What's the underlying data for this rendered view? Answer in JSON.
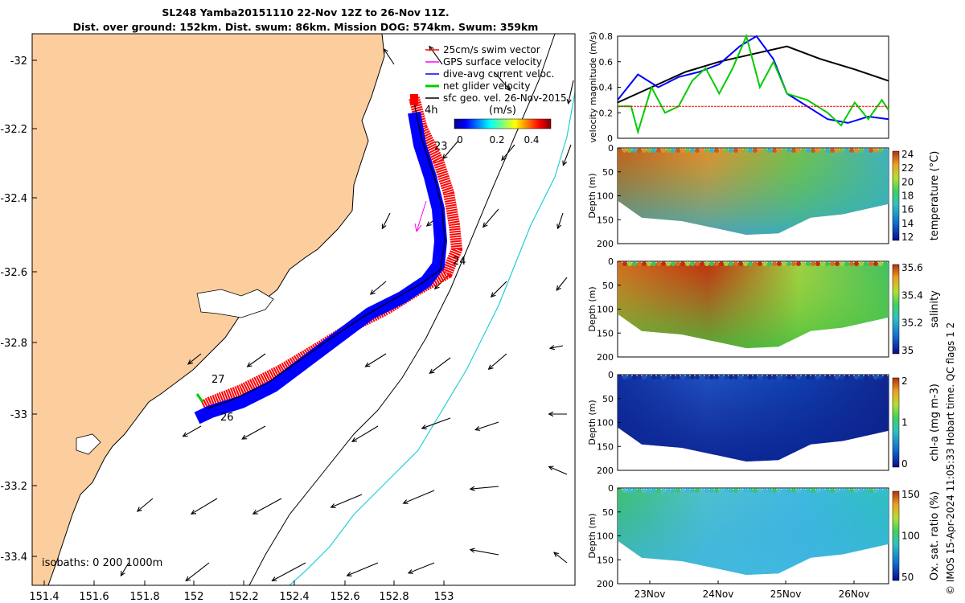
{
  "titles": {
    "line1": "SL248 Yamba20151110 22-Nov 12Z to 26-Nov 11Z.",
    "line2": "Dist. over ground: 152km. Dist. swum: 86km. Mission DOG: 574km. Swum: 359km"
  },
  "map": {
    "lon_ticks": [
      "151.4",
      "151.6",
      "151.8",
      "152",
      "152.2",
      "152.4",
      "152.6",
      "152.8",
      "153"
    ],
    "lat_ticks": [
      "-32",
      "-32.2",
      "-32.4",
      "-32.6",
      "-32.8",
      "-33",
      "-33.2",
      "-33.4"
    ],
    "legend": [
      "25cm/s swim vector",
      "GPS surface velocity",
      "dive-avg current veloc.",
      "net glider velocity",
      "sfc geo. vel. 26-Nov-2015"
    ],
    "colorbar_label": "(m/s)",
    "colorbar_ticks": [
      "0",
      "0.2",
      "0.4"
    ],
    "isobaths_label": "isobaths: 0   200  1000m",
    "day_labels": [
      "4h",
      "23",
      "24",
      "27",
      "26"
    ],
    "colors": {
      "land": "#fcce9e",
      "swim": "#ff0000",
      "current": "#0000ff",
      "glider": "#00cc00",
      "gps": "#ff00ff",
      "iso200": "#000000",
      "iso1000": "#20d0d0"
    }
  },
  "chart_data": [
    {
      "type": "line",
      "ylabel": "velocity magnitude (m/s)",
      "ylim": [
        0,
        0.8
      ],
      "yticks": [
        "0",
        "0.2",
        "0.4",
        "0.6",
        "0.8"
      ],
      "x_range_days": [
        22.5,
        26.5
      ],
      "series": [
        {
          "color": "#000000",
          "x": [
            22.5,
            23.0,
            23.5,
            24.0,
            24.5,
            25.0,
            25.5,
            26.0,
            26.5
          ],
          "values": [
            0.28,
            0.4,
            0.52,
            0.6,
            0.66,
            0.72,
            0.62,
            0.54,
            0.45
          ]
        },
        {
          "color": "#0000ff",
          "x": [
            22.5,
            22.8,
            23.1,
            23.4,
            23.7,
            24.0,
            24.3,
            24.55,
            24.8,
            25.0,
            25.3,
            25.6,
            25.9,
            26.2,
            26.5
          ],
          "values": [
            0.3,
            0.5,
            0.4,
            0.48,
            0.52,
            0.58,
            0.72,
            0.8,
            0.62,
            0.35,
            0.25,
            0.15,
            0.12,
            0.17,
            0.15
          ]
        },
        {
          "color": "#00cc00",
          "x": [
            22.5,
            22.7,
            22.8,
            23.0,
            23.2,
            23.4,
            23.6,
            23.8,
            24.0,
            24.2,
            24.4,
            24.5,
            24.6,
            24.8,
            25.0,
            25.3,
            25.6,
            25.8,
            26.0,
            26.2,
            26.4,
            26.5
          ],
          "values": [
            0.25,
            0.25,
            0.05,
            0.4,
            0.2,
            0.25,
            0.45,
            0.55,
            0.35,
            0.55,
            0.8,
            0.6,
            0.4,
            0.6,
            0.35,
            0.3,
            0.2,
            0.1,
            0.28,
            0.15,
            0.3,
            0.22
          ]
        },
        {
          "color": "#ff0000",
          "x": [
            22.5,
            26.5
          ],
          "values": [
            0.25,
            0.25
          ]
        }
      ]
    },
    {
      "type": "heatmap",
      "variable": "temperature",
      "ylabel": "Depth (m)",
      "cblabel": "temperature (°C)",
      "cbticks": [
        "12",
        "14",
        "16",
        "18",
        "20",
        "22",
        "24"
      ],
      "ylim": [
        0,
        200
      ],
      "yticks": [
        "0",
        "50",
        "100",
        "150",
        "200"
      ]
    },
    {
      "type": "heatmap",
      "variable": "salinity",
      "ylabel": "Depth (m)",
      "cblabel": "salinity",
      "cbticks": [
        "35",
        "35.2",
        "35.4",
        "35.6"
      ],
      "ylim": [
        0,
        200
      ],
      "yticks": [
        "0",
        "50",
        "100",
        "150",
        "200"
      ]
    },
    {
      "type": "heatmap",
      "variable": "chl-a",
      "ylabel": "Depth (m)",
      "cblabel": "chl-a (mg m-3)",
      "cbticks": [
        "0",
        "1",
        "2"
      ],
      "ylim": [
        0,
        200
      ],
      "yticks": [
        "0",
        "50",
        "100",
        "150",
        "200"
      ]
    },
    {
      "type": "heatmap",
      "variable": "oxygen",
      "ylabel": "Depth (m)",
      "cblabel": "Ox. sat. ratio (%)",
      "cbticks": [
        "50",
        "100",
        "150"
      ],
      "ylim": [
        0,
        200
      ],
      "yticks": [
        "0",
        "50",
        "100",
        "150",
        "200"
      ],
      "xticks": [
        "23Nov",
        "24Nov",
        "25Nov",
        "26Nov"
      ]
    }
  ],
  "footer": "© IMOS 15-Apr-2024 11:05:33 Hobart time. QC flags 1  2"
}
